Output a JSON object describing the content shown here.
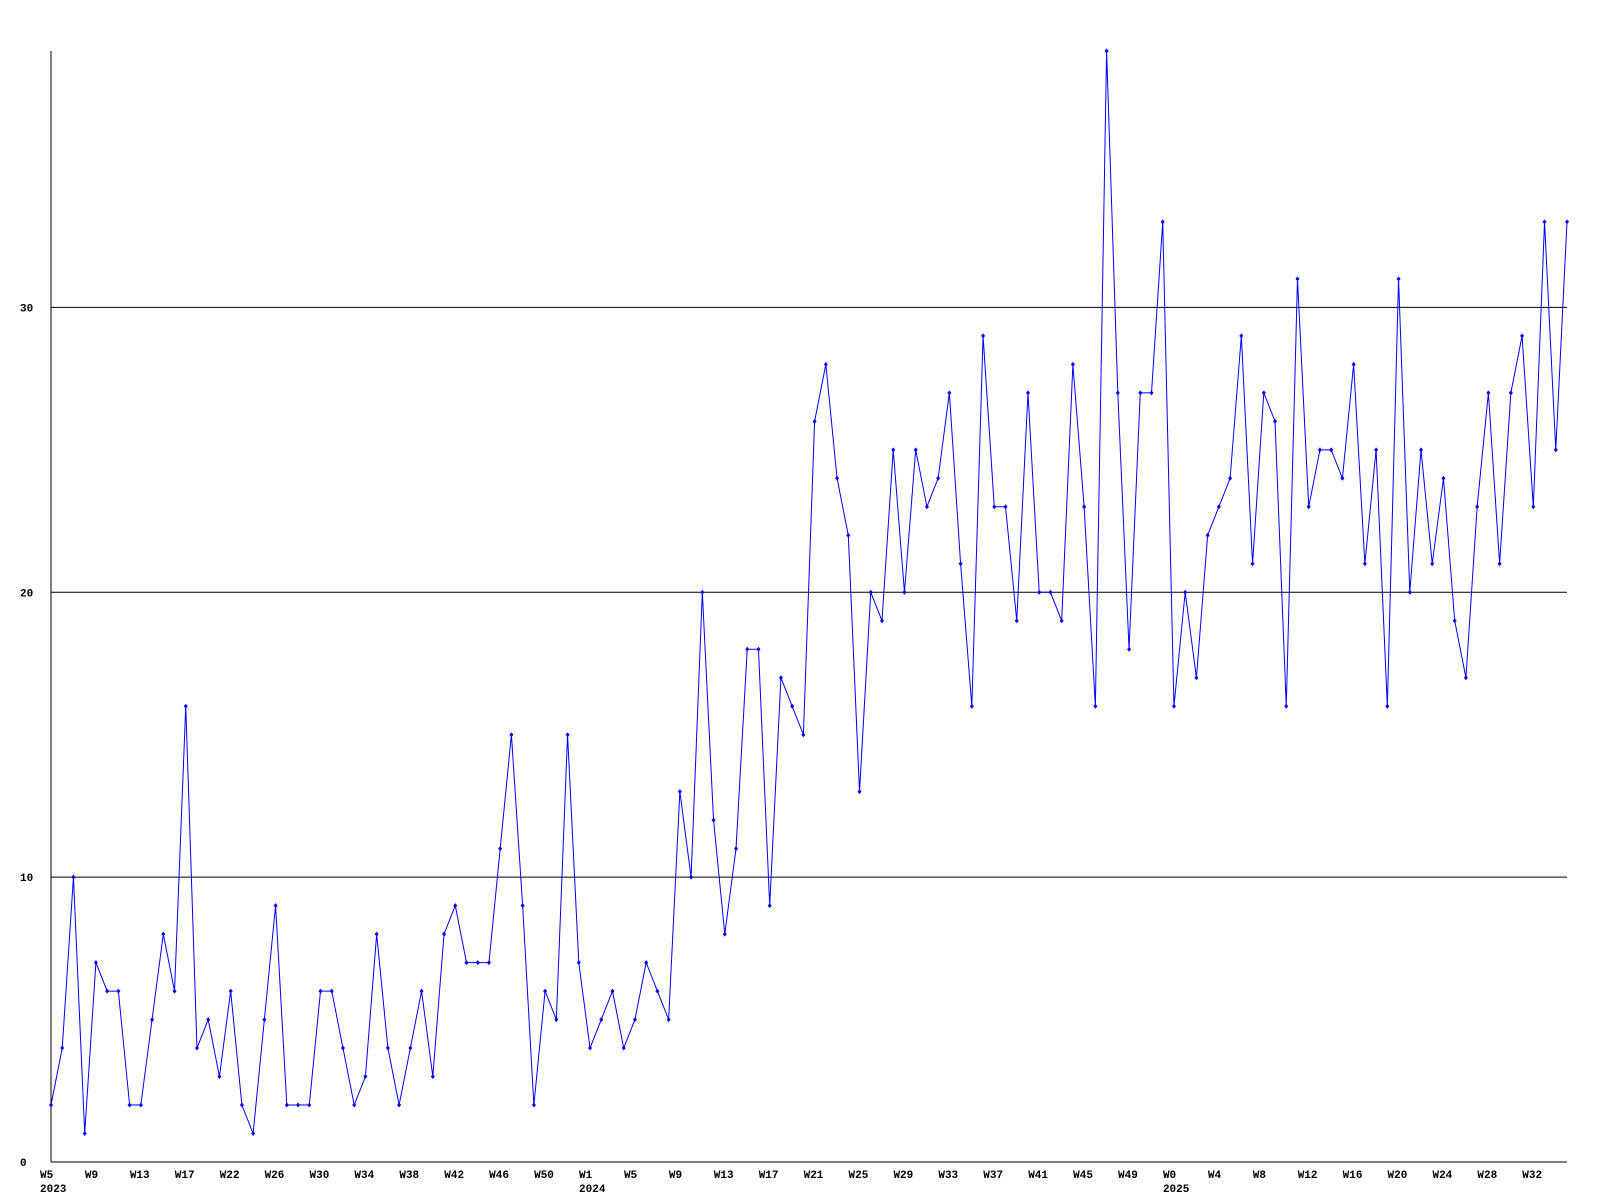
{
  "chart_data": {
    "type": "line",
    "color": "#0000ff",
    "grid": true,
    "ylim": [
      0,
      39
    ],
    "yticks": [
      0,
      10,
      20,
      30
    ],
    "categories": [
      "W5",
      null,
      null,
      null,
      "W9",
      null,
      null,
      null,
      "W13",
      null,
      null,
      null,
      "W17",
      null,
      null,
      null,
      "W22",
      null,
      null,
      null,
      "W26",
      null,
      null,
      null,
      "W30",
      null,
      null,
      null,
      "W34",
      null,
      null,
      null,
      "W38",
      null,
      null,
      null,
      "W42",
      null,
      null,
      null,
      "W46",
      null,
      null,
      null,
      "W50",
      null,
      null,
      null,
      "W1",
      null,
      null,
      null,
      "W5",
      null,
      null,
      null,
      "W9",
      null,
      null,
      null,
      "W13",
      null,
      null,
      null,
      "W17",
      null,
      null,
      null,
      "W21",
      null,
      null,
      null,
      "W25",
      null,
      null,
      null,
      "W29",
      null,
      null,
      null,
      "W33",
      null,
      null,
      null,
      "W37",
      null,
      null,
      null,
      "W41",
      null,
      null,
      null,
      "W45",
      null,
      null,
      null,
      "W49",
      null,
      null,
      null,
      "W0",
      null,
      null,
      null,
      "W4",
      null,
      null,
      null,
      "W8",
      null,
      null,
      null,
      "W12",
      null,
      null,
      null,
      "W16",
      null,
      null,
      null,
      "W20",
      null,
      null,
      null,
      "W24",
      null,
      null,
      null,
      "W28",
      null,
      null,
      null,
      "W32",
      null,
      null,
      null
    ],
    "category_years": [
      "2023",
      null,
      null,
      null,
      null,
      null,
      null,
      null,
      null,
      null,
      null,
      null,
      null,
      null,
      null,
      null,
      null,
      null,
      null,
      null,
      null,
      null,
      null,
      null,
      null,
      null,
      null,
      null,
      null,
      null,
      null,
      null,
      null,
      null,
      null,
      null,
      null,
      null,
      null,
      null,
      null,
      null,
      null,
      null,
      null,
      null,
      null,
      null,
      "2024",
      null,
      null,
      null,
      null,
      null,
      null,
      null,
      null,
      null,
      null,
      null,
      null,
      null,
      null,
      null,
      null,
      null,
      null,
      null,
      null,
      null,
      null,
      null,
      null,
      null,
      null,
      null,
      null,
      null,
      null,
      null,
      null,
      null,
      null,
      null,
      null,
      null,
      null,
      null,
      null,
      null,
      null,
      null,
      null,
      null,
      null,
      null,
      null,
      null,
      null,
      null,
      "2025",
      null,
      null,
      null,
      null,
      null,
      null,
      null,
      null,
      null,
      null,
      null,
      null,
      null,
      null,
      null,
      null,
      null,
      null,
      null,
      null,
      null,
      null,
      null,
      null,
      null,
      null,
      null,
      null,
      null,
      null,
      null,
      null,
      null,
      null,
      null
    ],
    "values": [
      2,
      4,
      10,
      1,
      7,
      6,
      6,
      2,
      2,
      5,
      8,
      6,
      16,
      4,
      5,
      3,
      6,
      2,
      1,
      5,
      9,
      2,
      2,
      2,
      6,
      6,
      4,
      2,
      3,
      8,
      4,
      2,
      4,
      6,
      3,
      8,
      9,
      7,
      7,
      7,
      11,
      15,
      9,
      2,
      6,
      5,
      15,
      7,
      4,
      5,
      6,
      4,
      5,
      7,
      6,
      5,
      13,
      10,
      20,
      12,
      8,
      11,
      18,
      18,
      9,
      17,
      16,
      15,
      26,
      28,
      24,
      22,
      13,
      20,
      19,
      25,
      20,
      25,
      23,
      24,
      27,
      21,
      16,
      29,
      23,
      23,
      19,
      27,
      20,
      20,
      19,
      28,
      23,
      16,
      39,
      27,
      18,
      27,
      27,
      33,
      16,
      20,
      17,
      22,
      23,
      24,
      29,
      21,
      27,
      26,
      16,
      31,
      23,
      25,
      25,
      24,
      28,
      21,
      25,
      16,
      31,
      20,
      25,
      21,
      24,
      19,
      17,
      23,
      27,
      21,
      27,
      29,
      23,
      33,
      25,
      33
    ]
  }
}
